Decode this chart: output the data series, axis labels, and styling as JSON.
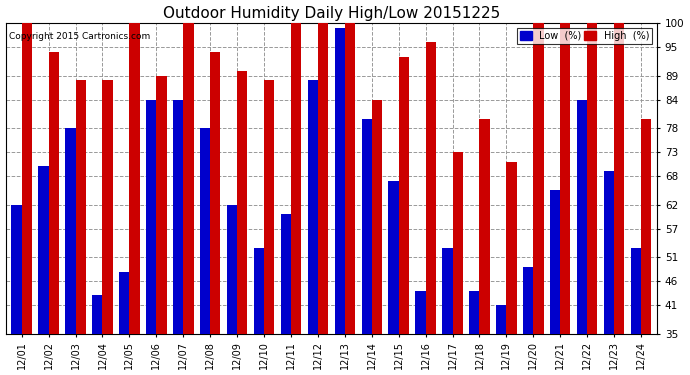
{
  "title": "Outdoor Humidity Daily High/Low 20151225",
  "copyright": "Copyright 2015 Cartronics.com",
  "dates": [
    "12/01",
    "12/02",
    "12/03",
    "12/04",
    "12/05",
    "12/06",
    "12/07",
    "12/08",
    "12/09",
    "12/10",
    "12/11",
    "12/12",
    "12/13",
    "12/14",
    "12/15",
    "12/16",
    "12/17",
    "12/18",
    "12/19",
    "12/20",
    "12/21",
    "12/22",
    "12/23",
    "12/24"
  ],
  "low_values": [
    62,
    70,
    78,
    43,
    48,
    84,
    84,
    78,
    62,
    53,
    60,
    88,
    99,
    80,
    67,
    44,
    53,
    44,
    41,
    49,
    65,
    84,
    69,
    53
  ],
  "high_values": [
    100,
    94,
    88,
    88,
    100,
    89,
    100,
    94,
    90,
    88,
    100,
    100,
    100,
    84,
    93,
    96,
    73,
    80,
    71,
    100,
    100,
    100,
    100,
    80
  ],
  "low_color": "#0000cc",
  "high_color": "#cc0000",
  "bg_color": "#ffffff",
  "plot_bg_color": "#ffffff",
  "grid_color": "#999999",
  "yticks": [
    35,
    41,
    46,
    51,
    57,
    62,
    68,
    73,
    78,
    84,
    89,
    95,
    100
  ],
  "ymin": 35,
  "ymax": 100,
  "title_fontsize": 11,
  "bar_width": 0.38,
  "legend_low_label": "Low  (%)",
  "legend_high_label": "High  (%)"
}
